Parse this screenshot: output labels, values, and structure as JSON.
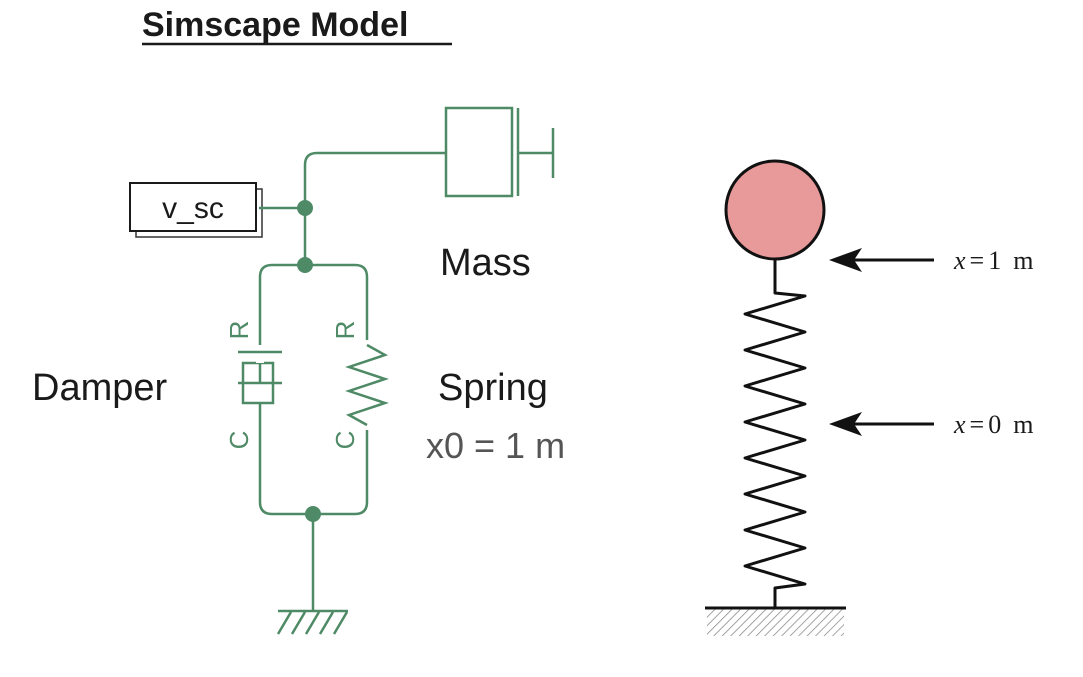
{
  "simscape": {
    "title": "Simscape Model",
    "signal_label": "v_sc",
    "mass_label": "Mass",
    "damper_label": "Damper",
    "spring_label": "Spring",
    "spring_param": "x0 = 1 m",
    "port_r": "R",
    "port_c": "C"
  },
  "physical": {
    "marker_top": {
      "var": "x",
      "eq": "=",
      "value": "1",
      "unit": "m"
    },
    "marker_mid": {
      "var": "x",
      "eq": "=",
      "value": "0",
      "unit": "m"
    }
  },
  "colors": {
    "wire": "#4f8a66",
    "ball": "#e89a9a",
    "ink": "#1a1a1a"
  },
  "icons": [
    "ground-icon",
    "mass-block-icon",
    "damper-icon",
    "spring-icon"
  ]
}
